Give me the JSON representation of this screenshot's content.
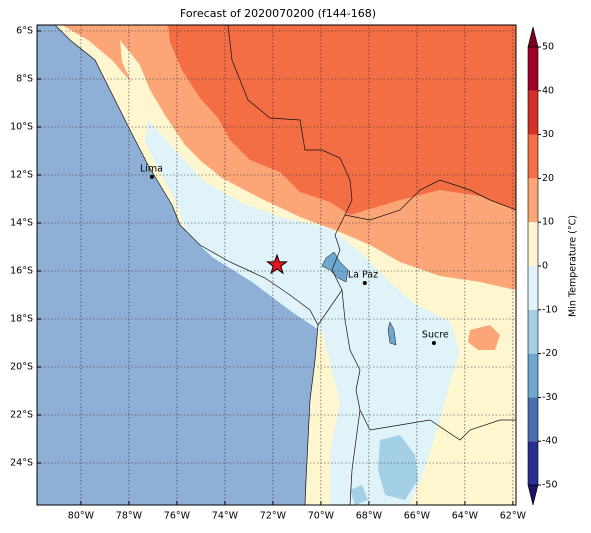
{
  "title": "Forecast of 2020070200 (f144-168)",
  "map": {
    "xlim": [
      -81.83,
      -61.87
    ],
    "ylim": [
      -25.75,
      -5.75
    ],
    "xticks": [
      {
        "value": -80,
        "label": "80°W"
      },
      {
        "value": -78,
        "label": "78°W"
      },
      {
        "value": -76,
        "label": "76°W"
      },
      {
        "value": -74,
        "label": "74°W"
      },
      {
        "value": -72,
        "label": "72°W"
      },
      {
        "value": -70,
        "label": "70°W"
      },
      {
        "value": -68,
        "label": "68°W"
      },
      {
        "value": -66,
        "label": "66°W"
      },
      {
        "value": -64,
        "label": "64°W"
      },
      {
        "value": -62,
        "label": "62°W"
      }
    ],
    "yticks": [
      {
        "value": -6,
        "label": "6°S"
      },
      {
        "value": -8,
        "label": "8°S"
      },
      {
        "value": -10,
        "label": "10°S"
      },
      {
        "value": -12,
        "label": "12°S"
      },
      {
        "value": -14,
        "label": "14°S"
      },
      {
        "value": -16,
        "label": "16°S"
      },
      {
        "value": -18,
        "label": "18°S"
      },
      {
        "value": -20,
        "label": "20°S"
      },
      {
        "value": -22,
        "label": "22°S"
      },
      {
        "value": -24,
        "label": "24°S"
      }
    ],
    "cities": [
      {
        "name": "Lima",
        "lon": -77.04,
        "lat": -12.08
      },
      {
        "name": "La Paz",
        "lon": -68.17,
        "lat": -16.5
      },
      {
        "name": "Sucre",
        "lon": -65.29,
        "lat": -19.0
      }
    ],
    "marker": {
      "lon": -71.83,
      "lat": -15.75,
      "color": "#e8141b"
    }
  },
  "colorbar": {
    "label": "Min Temperature (°C)",
    "ticks": [
      -50,
      -40,
      -30,
      -20,
      -10,
      0,
      10,
      20,
      30,
      40,
      50
    ],
    "colors": [
      "#2a2f8f",
      "#4a6fb0",
      "#6fa7cf",
      "#a3d0e5",
      "#e0f3f8",
      "#fef6cf",
      "#fca576",
      "#f36d45",
      "#d33127",
      "#a00026"
    ],
    "under_color": "#1c1466",
    "over_color": "#7c0022"
  }
}
